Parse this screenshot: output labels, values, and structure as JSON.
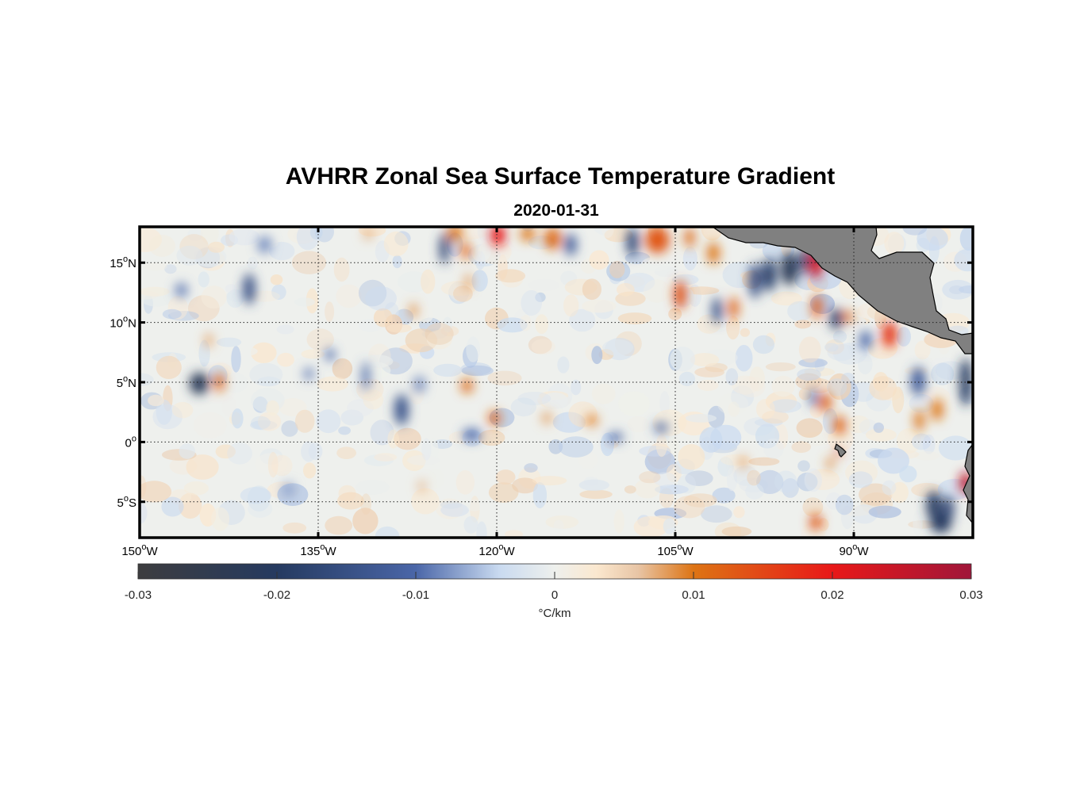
{
  "title": "AVHRR Zonal Sea Surface Temperature Gradient",
  "subtitle": "2020-01-31",
  "map": {
    "lon_range": [
      -150,
      -80
    ],
    "lat_range": [
      -8,
      18
    ],
    "lon_ticks": [
      {
        "value": -150,
        "deg": "150",
        "hemi": "W"
      },
      {
        "value": -135,
        "deg": "135",
        "hemi": "W"
      },
      {
        "value": -120,
        "deg": "120",
        "hemi": "W"
      },
      {
        "value": -105,
        "deg": "105",
        "hemi": "W"
      },
      {
        "value": -90,
        "deg": "90",
        "hemi": "W"
      }
    ],
    "lat_ticks": [
      {
        "value": 15,
        "deg": "15",
        "hemi": "N"
      },
      {
        "value": 10,
        "deg": "10",
        "hemi": "N"
      },
      {
        "value": 5,
        "deg": "5",
        "hemi": "N"
      },
      {
        "value": 0,
        "deg": "0",
        "hemi": ""
      },
      {
        "value": -5,
        "deg": "5",
        "hemi": "S"
      }
    ],
    "grid": "dotted",
    "land_color": "#808080",
    "features": [
      {
        "lon": -145.0,
        "lat": 4.9,
        "v": -0.022,
        "rx": 0.8,
        "ry": 0.9
      },
      {
        "lon": -143.3,
        "lat": 5.0,
        "v": 0.012,
        "rx": 0.4,
        "ry": 0.8
      },
      {
        "lon": -140.8,
        "lat": 12.8,
        "v": -0.015,
        "rx": 0.5,
        "ry": 1.3
      },
      {
        "lon": -139.5,
        "lat": 16.5,
        "v": -0.008,
        "rx": 0.6,
        "ry": 0.7
      },
      {
        "lon": -128.0,
        "lat": 2.7,
        "v": -0.014,
        "rx": 0.6,
        "ry": 1.3
      },
      {
        "lon": -126.5,
        "lat": 4.8,
        "v": -0.008,
        "rx": 0.5,
        "ry": 0.7
      },
      {
        "lon": -124.4,
        "lat": 16.2,
        "v": -0.017,
        "rx": 0.4,
        "ry": 1.3
      },
      {
        "lon": -123.5,
        "lat": 17.5,
        "v": 0.01,
        "rx": 0.6,
        "ry": 0.7
      },
      {
        "lon": -122.6,
        "lat": 16.0,
        "v": 0.012,
        "rx": 0.4,
        "ry": 0.7
      },
      {
        "lon": -122.4,
        "lat": 13.4,
        "v": 0.008,
        "rx": 0.3,
        "ry": 0.7
      },
      {
        "lon": -122.5,
        "lat": 4.7,
        "v": 0.011,
        "rx": 0.5,
        "ry": 0.6
      },
      {
        "lon": -122.1,
        "lat": 0.6,
        "v": -0.01,
        "rx": 0.8,
        "ry": 0.5
      },
      {
        "lon": -120.2,
        "lat": 2.0,
        "v": 0.012,
        "rx": 0.5,
        "ry": 0.6
      },
      {
        "lon": -119.9,
        "lat": 17.3,
        "v": 0.02,
        "rx": 0.6,
        "ry": 0.9
      },
      {
        "lon": -117.4,
        "lat": 17.4,
        "v": 0.01,
        "rx": 0.6,
        "ry": 0.6
      },
      {
        "lon": -115.3,
        "lat": 17.0,
        "v": 0.011,
        "rx": 0.7,
        "ry": 0.9
      },
      {
        "lon": -112.0,
        "lat": 1.8,
        "v": 0.009,
        "rx": 0.5,
        "ry": 0.5
      },
      {
        "lon": -110.0,
        "lat": 0.4,
        "v": -0.011,
        "rx": 0.6,
        "ry": 0.4
      },
      {
        "lon": -108.6,
        "lat": 16.7,
        "v": -0.017,
        "rx": 0.5,
        "ry": 1.2
      },
      {
        "lon": -106.2,
        "lat": 1.2,
        "v": -0.011,
        "rx": 0.6,
        "ry": 0.4
      },
      {
        "lon": -106.5,
        "lat": 16.9,
        "v": 0.013,
        "rx": 1.0,
        "ry": 1.1
      },
      {
        "lon": -104.6,
        "lat": 12.3,
        "v": 0.014,
        "rx": 0.5,
        "ry": 1.2
      },
      {
        "lon": -103.8,
        "lat": 17.1,
        "v": 0.011,
        "rx": 0.4,
        "ry": 0.8
      },
      {
        "lon": -101.8,
        "lat": 15.8,
        "v": 0.01,
        "rx": 0.5,
        "ry": 0.9
      },
      {
        "lon": -101.5,
        "lat": 11.0,
        "v": -0.015,
        "rx": 0.4,
        "ry": 1.1
      },
      {
        "lon": -100.1,
        "lat": 11.2,
        "v": 0.012,
        "rx": 0.4,
        "ry": 0.9
      },
      {
        "lon": -98.3,
        "lat": 13.5,
        "v": -0.015,
        "rx": 0.5,
        "ry": 1.5
      },
      {
        "lon": -97.1,
        "lat": 14.0,
        "v": -0.018,
        "rx": 0.6,
        "ry": 1.4
      },
      {
        "lon": -95.4,
        "lat": 14.5,
        "v": -0.022,
        "rx": 0.7,
        "ry": 1.4
      },
      {
        "lon": -94.2,
        "lat": 15.2,
        "v": -0.016,
        "rx": 0.4,
        "ry": 1.2
      },
      {
        "lon": -93.2,
        "lat": 15.0,
        "v": 0.024,
        "rx": 0.6,
        "ry": 1.3
      },
      {
        "lon": -93.1,
        "lat": 11.3,
        "v": 0.013,
        "rx": 0.4,
        "ry": 1.0
      },
      {
        "lon": -91.5,
        "lat": 10.3,
        "v": -0.019,
        "rx": 0.5,
        "ry": 0.9
      },
      {
        "lon": -90.5,
        "lat": 10.5,
        "v": 0.011,
        "rx": 0.4,
        "ry": 0.5
      },
      {
        "lon": -89.0,
        "lat": 8.5,
        "v": -0.01,
        "rx": 0.5,
        "ry": 0.8
      },
      {
        "lon": -87.0,
        "lat": 9.0,
        "v": 0.017,
        "rx": 0.6,
        "ry": 1.1
      },
      {
        "lon": -84.6,
        "lat": 5.1,
        "v": -0.012,
        "rx": 0.6,
        "ry": 1.2
      },
      {
        "lon": -84.5,
        "lat": 1.8,
        "v": 0.01,
        "rx": 0.4,
        "ry": 0.9
      },
      {
        "lon": -83.0,
        "lat": 2.7,
        "v": 0.01,
        "rx": 0.5,
        "ry": 0.9
      },
      {
        "lon": -80.6,
        "lat": 5.0,
        "v": -0.02,
        "rx": 0.5,
        "ry": 2.0
      },
      {
        "lon": -93.4,
        "lat": 3.7,
        "v": -0.012,
        "rx": 0.3,
        "ry": 0.8
      },
      {
        "lon": -92.4,
        "lat": 3.3,
        "v": 0.012,
        "rx": 0.5,
        "ry": 0.8
      },
      {
        "lon": -91.2,
        "lat": 1.4,
        "v": 0.012,
        "rx": 0.5,
        "ry": 0.8
      },
      {
        "lon": -91.3,
        "lat": -0.9,
        "v": 0.016,
        "rx": 0.3,
        "ry": 0.3
      },
      {
        "lon": -92.0,
        "lat": -1.8,
        "v": 0.009,
        "rx": 0.3,
        "ry": 0.5
      },
      {
        "lon": -93.2,
        "lat": -6.7,
        "v": 0.013,
        "rx": 0.5,
        "ry": 0.7
      },
      {
        "lon": -83.3,
        "lat": -5.3,
        "v": -0.02,
        "rx": 0.6,
        "ry": 1.2
      },
      {
        "lon": -82.1,
        "lat": -5.6,
        "v": -0.017,
        "rx": 0.5,
        "ry": 1.1
      },
      {
        "lon": -82.7,
        "lat": -6.8,
        "v": -0.02,
        "rx": 0.9,
        "ry": 0.8
      },
      {
        "lon": -80.6,
        "lat": -3.4,
        "v": 0.026,
        "rx": 0.5,
        "ry": 0.9
      },
      {
        "lon": -113.8,
        "lat": 16.5,
        "v": -0.012,
        "rx": 0.5,
        "ry": 0.9
      },
      {
        "lon": -130.8,
        "lat": 17.4,
        "v": 0.007,
        "rx": 0.4,
        "ry": 0.5
      },
      {
        "lon": -131.0,
        "lat": 5.5,
        "v": -0.01,
        "rx": 0.3,
        "ry": 1.2
      },
      {
        "lon": -134.0,
        "lat": 7.3,
        "v": -0.01,
        "rx": 0.4,
        "ry": 0.5
      },
      {
        "lon": -127.0,
        "lat": 11.0,
        "v": 0.009,
        "rx": 0.3,
        "ry": 0.6
      },
      {
        "lon": -135.8,
        "lat": 5.7,
        "v": -0.009,
        "rx": 0.4,
        "ry": 0.5
      },
      {
        "lon": -144.2,
        "lat": 8.5,
        "v": 0.008,
        "rx": 0.3,
        "ry": 0.6
      },
      {
        "lon": -146.5,
        "lat": 12.7,
        "v": -0.009,
        "rx": 0.5,
        "ry": 0.6
      },
      {
        "lon": -115.8,
        "lat": 2.0,
        "v": 0.008,
        "rx": 0.4,
        "ry": 0.5
      },
      {
        "lon": -99.3,
        "lat": -1.7,
        "v": 0.007,
        "rx": 0.4,
        "ry": 0.6
      },
      {
        "lon": -126.3,
        "lat": -3.7,
        "v": 0.007,
        "rx": 0.3,
        "ry": 0.5
      },
      {
        "lon": -137.5,
        "lat": -4.0,
        "v": -0.007,
        "rx": 0.5,
        "ry": 0.6
      }
    ]
  },
  "colorbar": {
    "min": -0.03,
    "max": 0.03,
    "ticks": [
      "-0.03",
      "-0.02",
      "-0.01",
      "0",
      "0.01",
      "0.02",
      "0.03"
    ],
    "label": "°C/km",
    "colors": [
      {
        "v": -0.03,
        "c": "#3d3d3f"
      },
      {
        "v": -0.02,
        "c": "#253a60"
      },
      {
        "v": -0.01,
        "c": "#4a66a8"
      },
      {
        "v": -0.004,
        "c": "#c9daf0"
      },
      {
        "v": 0.0,
        "c": "#eef0ed"
      },
      {
        "v": 0.003,
        "c": "#fbe8cf"
      },
      {
        "v": 0.006,
        "c": "#e8c5a5"
      },
      {
        "v": 0.01,
        "c": "#dd7414"
      },
      {
        "v": 0.02,
        "c": "#e81818"
      },
      {
        "v": 0.03,
        "c": "#a0163a"
      }
    ]
  }
}
